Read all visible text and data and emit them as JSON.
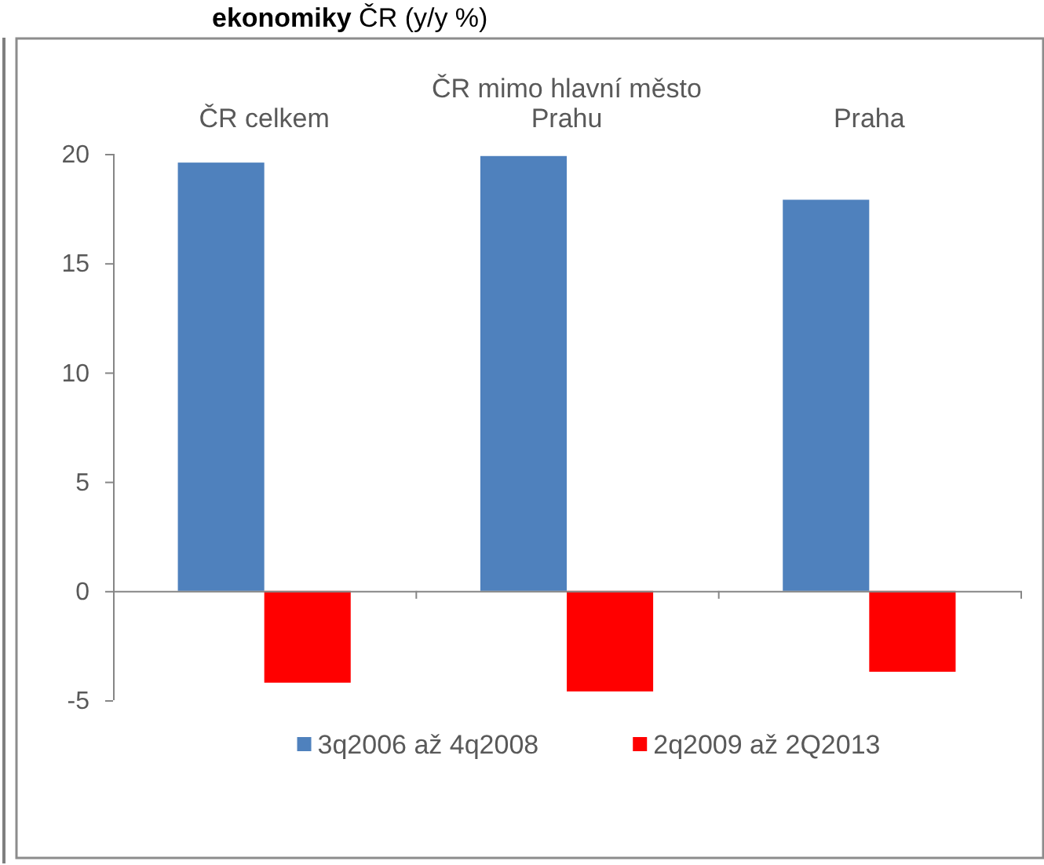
{
  "chart_data": {
    "type": "bar",
    "title": "ekonomiky ČR (y/y %)",
    "categories": [
      "ČR celkem",
      "ČR mimo hlavní město Prahu",
      "Praha"
    ],
    "series": [
      {
        "name": "3q2006 až 4q2008",
        "color": "#4f81bd",
        "values": [
          19.6,
          19.9,
          17.9
        ]
      },
      {
        "name": "2q2009 až 2Q2013",
        "color": "#ff0000",
        "values": [
          -4.2,
          -4.6,
          -3.7
        ]
      }
    ],
    "ylim": [
      -5,
      20
    ],
    "yticks": [
      -5,
      0,
      5,
      10,
      15,
      20
    ],
    "legend": "bottom"
  }
}
